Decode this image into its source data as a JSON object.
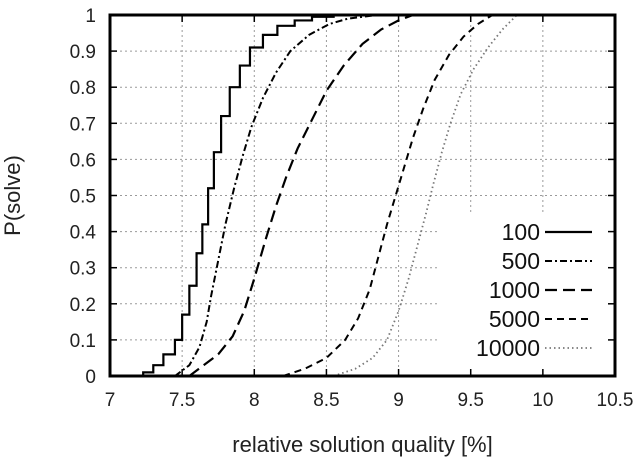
{
  "chart_data": {
    "type": "line",
    "title": "",
    "xlabel": "relative solution quality [%]",
    "ylabel": "P(solve)",
    "xlim": [
      7,
      10.5
    ],
    "ylim": [
      0,
      1
    ],
    "xticks": [
      "7",
      "7.5",
      "8",
      "8.5",
      "9",
      "9.5",
      "10",
      "10.5"
    ],
    "yticks": [
      "0",
      "0.1",
      "0.2",
      "0.3",
      "0.4",
      "0.5",
      "0.6",
      "0.7",
      "0.8",
      "0.9",
      "1"
    ],
    "grid": true,
    "legend_position": "bottom-right",
    "series": [
      {
        "name": "100",
        "color": "#000000",
        "dash": "solid",
        "points": [
          [
            7.23,
            0
          ],
          [
            7.3,
            0.01
          ],
          [
            7.37,
            0.03
          ],
          [
            7.45,
            0.06
          ],
          [
            7.5,
            0.1
          ],
          [
            7.55,
            0.17
          ],
          [
            7.6,
            0.25
          ],
          [
            7.64,
            0.34
          ],
          [
            7.68,
            0.42
          ],
          [
            7.72,
            0.52
          ],
          [
            7.77,
            0.62
          ],
          [
            7.83,
            0.72
          ],
          [
            7.9,
            0.8
          ],
          [
            7.97,
            0.86
          ],
          [
            8.06,
            0.91
          ],
          [
            8.16,
            0.945
          ],
          [
            8.28,
            0.97
          ],
          [
            8.4,
            0.985
          ],
          [
            8.55,
            0.995
          ],
          [
            8.75,
            1
          ]
        ]
      },
      {
        "name": "500",
        "color": "#000000",
        "dash": "dashdot",
        "points": [
          [
            7.45,
            0
          ],
          [
            7.55,
            0.03
          ],
          [
            7.62,
            0.08
          ],
          [
            7.67,
            0.15
          ],
          [
            7.7,
            0.22
          ],
          [
            7.75,
            0.32
          ],
          [
            7.8,
            0.42
          ],
          [
            7.86,
            0.52
          ],
          [
            7.92,
            0.61
          ],
          [
            7.98,
            0.69
          ],
          [
            8.06,
            0.77
          ],
          [
            8.15,
            0.84
          ],
          [
            8.25,
            0.9
          ],
          [
            8.38,
            0.945
          ],
          [
            8.52,
            0.975
          ],
          [
            8.65,
            0.99
          ],
          [
            8.85,
            1
          ]
        ]
      },
      {
        "name": "1000",
        "color": "#000000",
        "dash": "longdash",
        "points": [
          [
            7.55,
            0
          ],
          [
            7.65,
            0.03
          ],
          [
            7.75,
            0.06
          ],
          [
            7.85,
            0.11
          ],
          [
            7.93,
            0.18
          ],
          [
            8.0,
            0.27
          ],
          [
            8.08,
            0.38
          ],
          [
            8.15,
            0.47
          ],
          [
            8.22,
            0.55
          ],
          [
            8.3,
            0.63
          ],
          [
            8.4,
            0.71
          ],
          [
            8.5,
            0.79
          ],
          [
            8.62,
            0.86
          ],
          [
            8.75,
            0.92
          ],
          [
            8.88,
            0.96
          ],
          [
            9.0,
            0.985
          ],
          [
            9.1,
            1
          ]
        ]
      },
      {
        "name": "5000",
        "color": "#000000",
        "dash": "dashed",
        "points": [
          [
            8.2,
            0
          ],
          [
            8.35,
            0.02
          ],
          [
            8.5,
            0.05
          ],
          [
            8.63,
            0.1
          ],
          [
            8.72,
            0.16
          ],
          [
            8.8,
            0.24
          ],
          [
            8.86,
            0.33
          ],
          [
            8.92,
            0.42
          ],
          [
            8.98,
            0.5
          ],
          [
            9.04,
            0.58
          ],
          [
            9.1,
            0.66
          ],
          [
            9.17,
            0.74
          ],
          [
            9.25,
            0.82
          ],
          [
            9.35,
            0.89
          ],
          [
            9.45,
            0.94
          ],
          [
            9.55,
            0.975
          ],
          [
            9.65,
            1
          ]
        ]
      },
      {
        "name": "10000",
        "color": "#777777",
        "dash": "dotted",
        "points": [
          [
            8.55,
            0
          ],
          [
            8.7,
            0.02
          ],
          [
            8.82,
            0.05
          ],
          [
            8.92,
            0.1
          ],
          [
            9.0,
            0.18
          ],
          [
            9.07,
            0.27
          ],
          [
            9.13,
            0.36
          ],
          [
            9.19,
            0.45
          ],
          [
            9.24,
            0.53
          ],
          [
            9.3,
            0.62
          ],
          [
            9.36,
            0.7
          ],
          [
            9.43,
            0.78
          ],
          [
            9.52,
            0.85
          ],
          [
            9.62,
            0.91
          ],
          [
            9.72,
            0.96
          ],
          [
            9.82,
            1
          ]
        ]
      }
    ]
  }
}
